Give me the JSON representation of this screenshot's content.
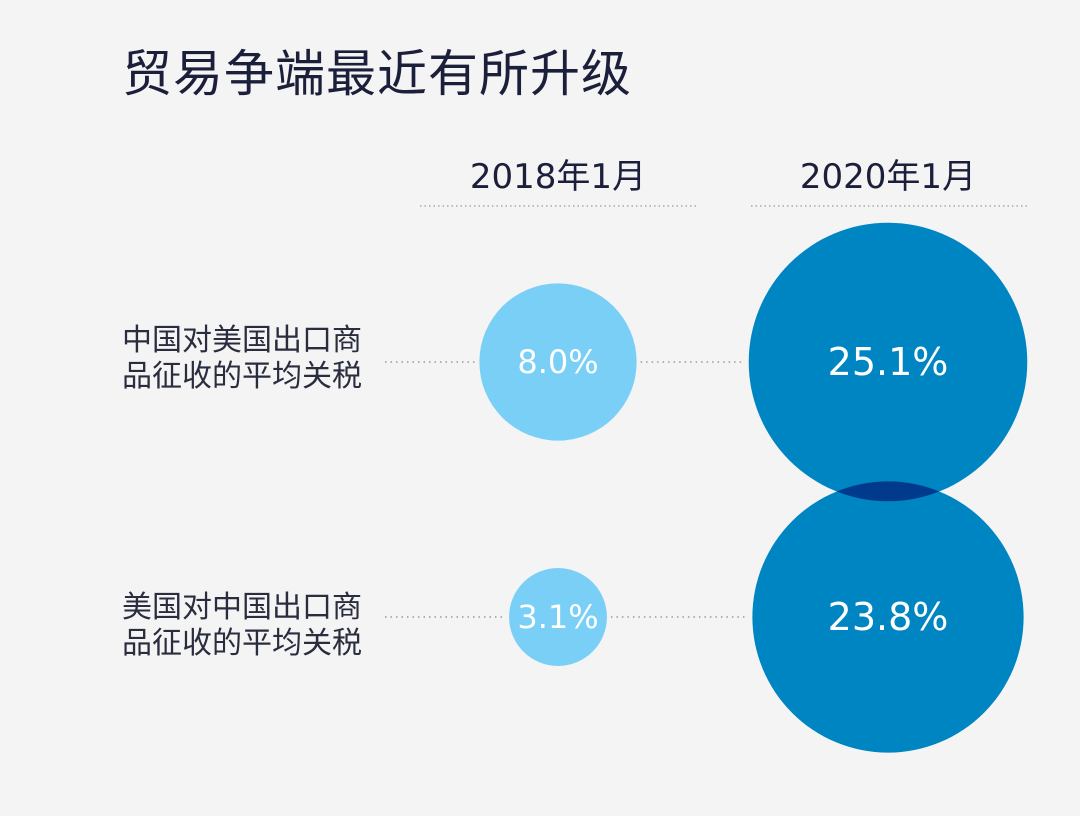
{
  "title": "贸易争端最近有所升级",
  "chart_data": {
    "type": "bubble",
    "columns": [
      "2018年1月",
      "2020年1月"
    ],
    "rows": [
      {
        "label_lines": [
          "中国对美国出口商",
          "品征收的平均关税"
        ],
        "values": [
          8.0,
          25.1
        ],
        "value_labels": [
          "8.0%",
          "25.1%"
        ]
      },
      {
        "label_lines": [
          "美国对中国出口商",
          "品征收的平均关税"
        ],
        "values": [
          3.1,
          23.8
        ],
        "value_labels": [
          "3.1%",
          "23.8%"
        ]
      }
    ],
    "colors": {
      "2018年1月": "#7acff7",
      "2020年1月": "#0085c3",
      "overlap": "#003a8c"
    }
  }
}
